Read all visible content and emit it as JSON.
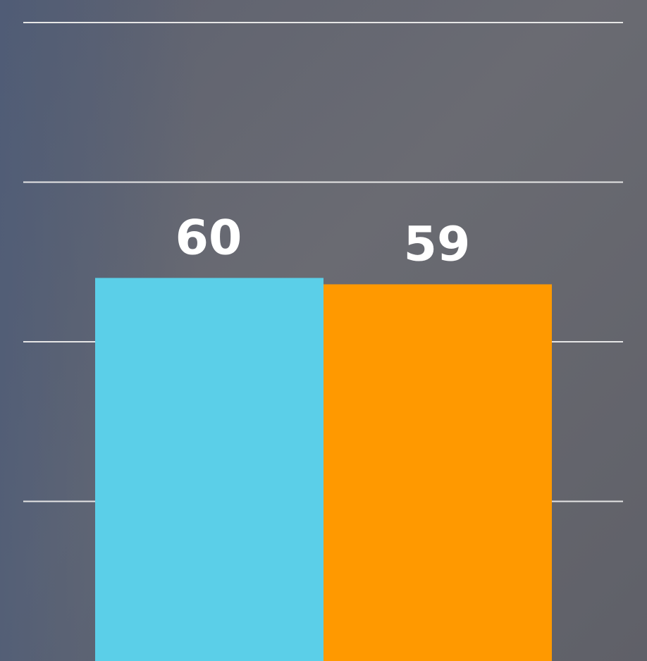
{
  "chart_data": {
    "type": "bar",
    "categories": [
      null,
      null
    ],
    "values": [
      60,
      59
    ],
    "colors": [
      "#5bcfe8",
      "#ff9900"
    ],
    "ylim": [
      0,
      100
    ],
    "yticks": [
      25,
      50,
      75,
      100
    ],
    "grid": true
  }
}
